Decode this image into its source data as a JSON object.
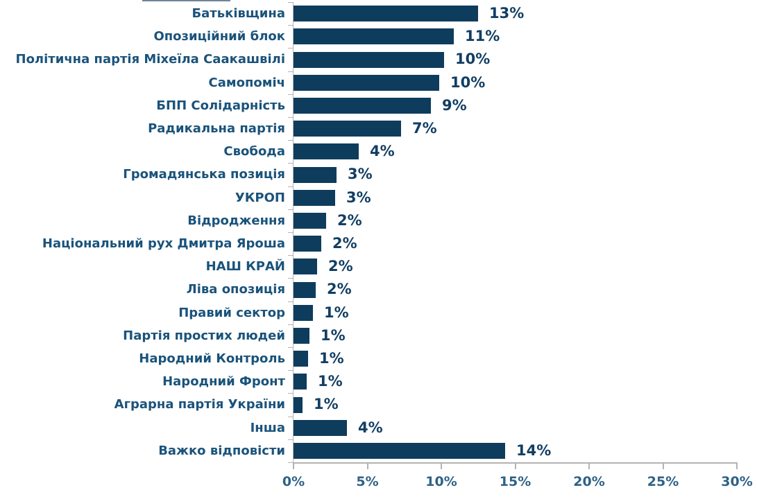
{
  "chart_data": {
    "type": "bar",
    "orientation": "horizontal",
    "title": "",
    "xlabel": "",
    "ylabel": "",
    "categories": [
      "Батьківщина",
      "Опозиційний блок",
      "Політична партія Міхеїла Саакашвілі",
      "Самопоміч",
      "БПП Солідарність",
      "Радикальна партія",
      "Свобода",
      "Громадянська позиція",
      "УКРОП",
      "Відродження",
      "Національний рух Дмитра Яроша",
      "НАШ КРАЙ",
      "Ліва опозиція",
      "Правий сектор",
      "Партія простих людей",
      "Народний Контроль",
      "Народний Фронт",
      "Аграрна партія України",
      "Інша",
      "Важко відповісти"
    ],
    "values": [
      13,
      11,
      10,
      10,
      9,
      7,
      4,
      3,
      3,
      2,
      2,
      2,
      2,
      1,
      1,
      1,
      1,
      1,
      4,
      14
    ],
    "value_labels": [
      "13%",
      "11%",
      "10%",
      "10%",
      "9%",
      "7%",
      "4%",
      "3%",
      "3%",
      "2%",
      "2%",
      "2%",
      "2%",
      "1%",
      "1%",
      "1%",
      "1%",
      "1%",
      "4%",
      "14%"
    ],
    "bar_percent_measured": [
      12.5,
      10.85,
      10.2,
      9.85,
      9.3,
      7.3,
      4.4,
      2.9,
      2.8,
      2.2,
      1.9,
      1.6,
      1.5,
      1.3,
      1.1,
      1.0,
      0.9,
      0.6,
      3.6,
      14.3
    ],
    "x_ticks": [
      "0%",
      "5%",
      "10%",
      "15%",
      "20%",
      "25%",
      "30%"
    ],
    "x_tick_values": [
      0,
      5,
      10,
      15,
      20,
      25,
      30
    ],
    "xlim": [
      0,
      30
    ],
    "grid": false,
    "legend": false,
    "colors": {
      "bar": "#0e3c5d",
      "category_label": "#1a537b",
      "value_label": "#123e63",
      "tick_label": "#2e6286",
      "axis": "#b3b3b3"
    }
  }
}
